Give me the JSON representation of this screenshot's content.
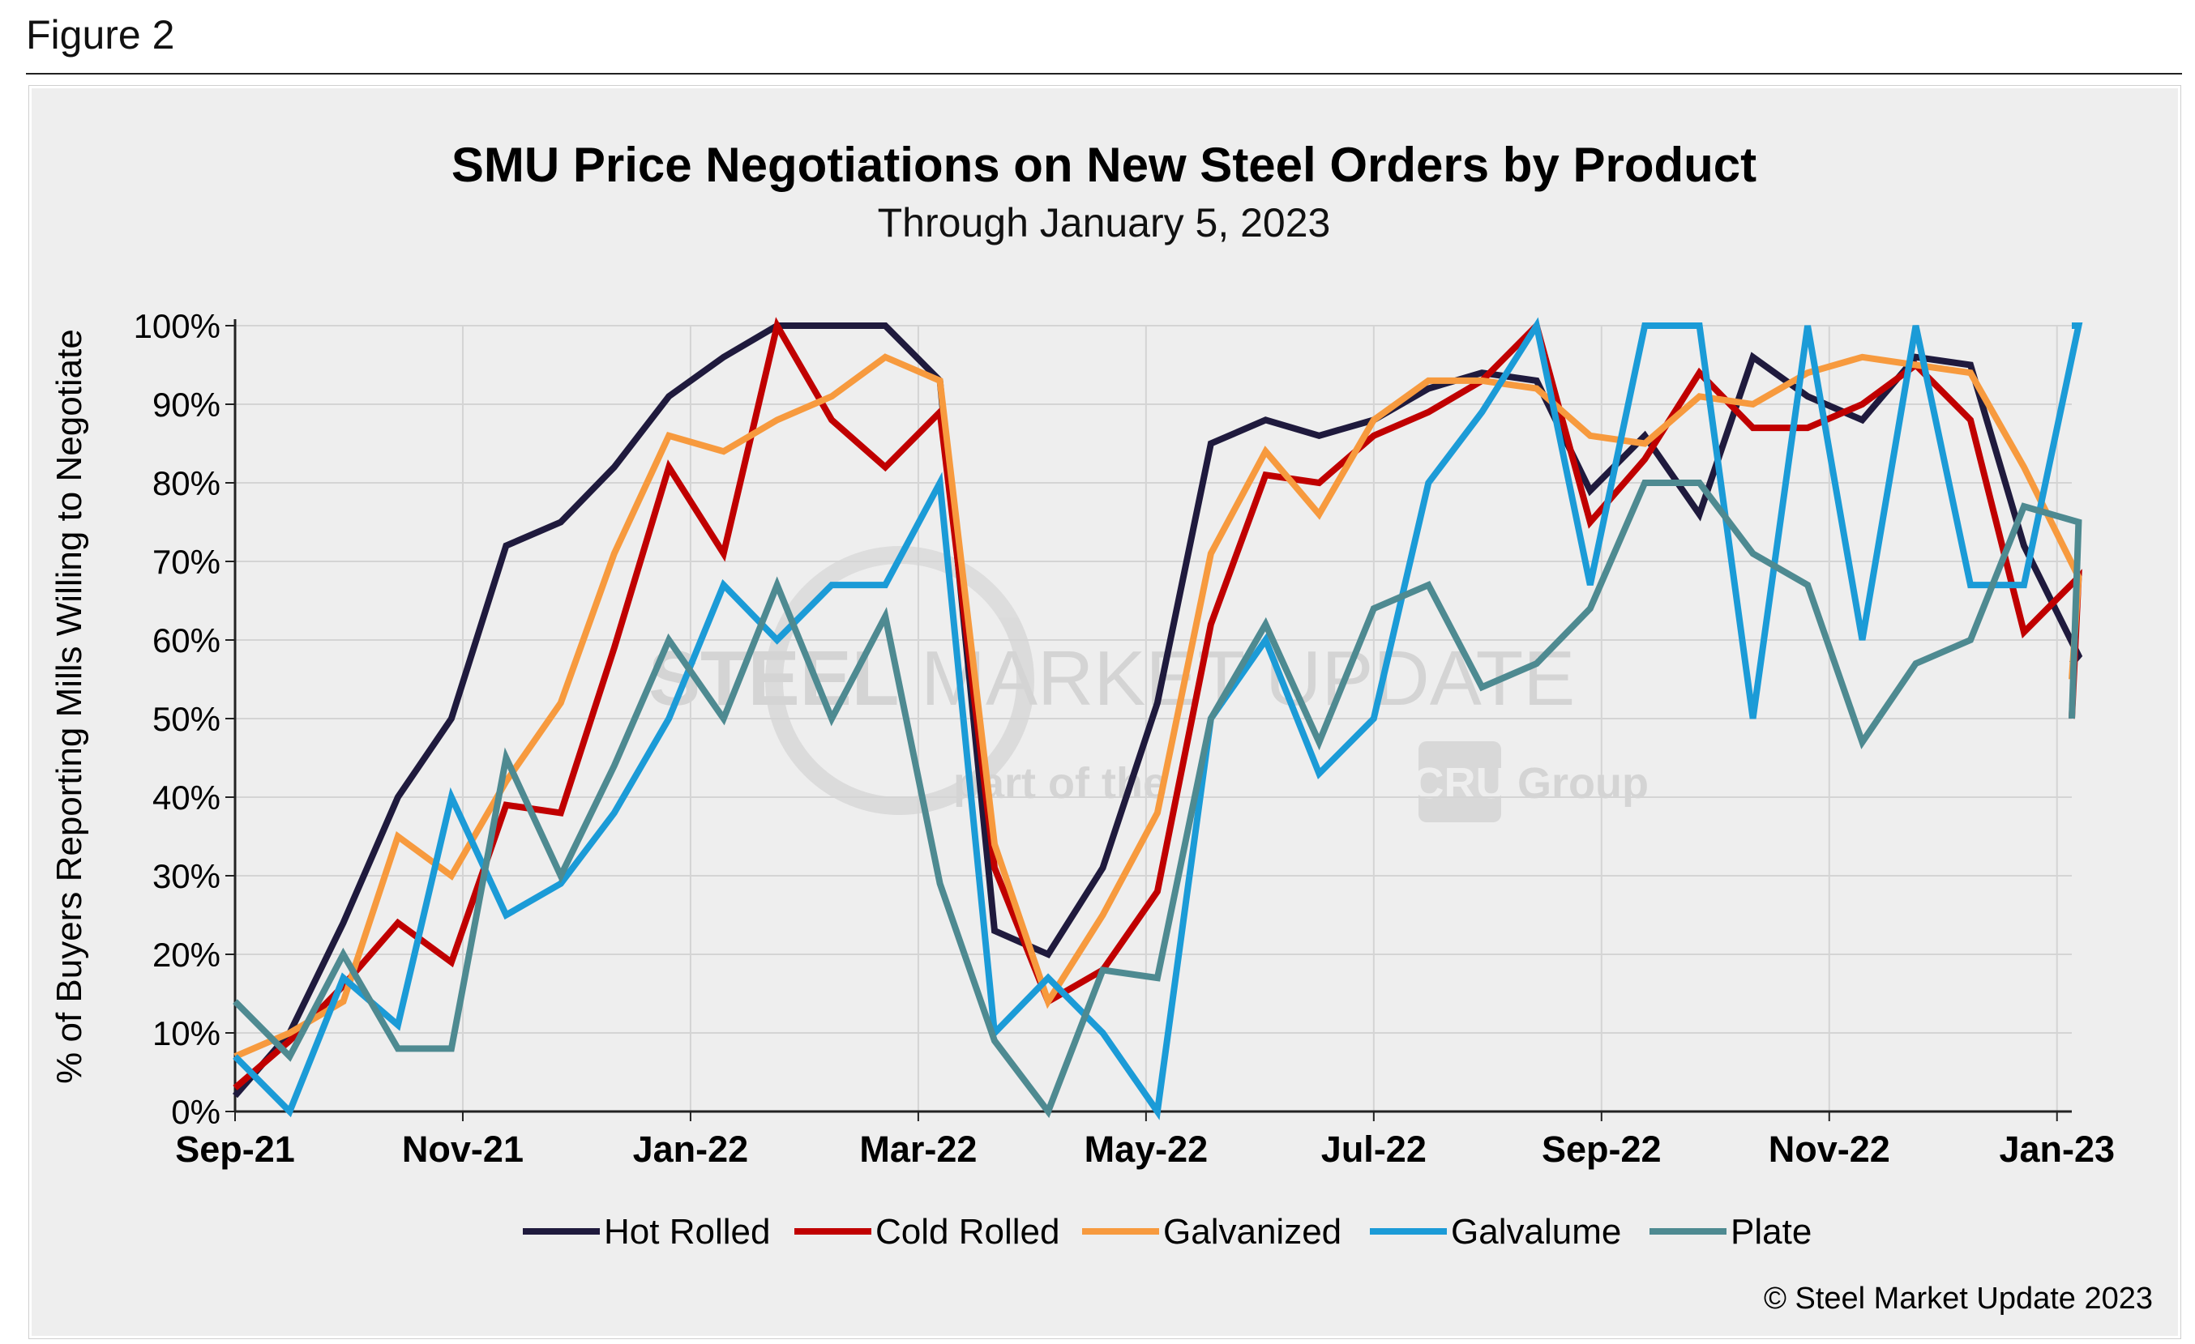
{
  "figure_label": "Figure 2",
  "copyright": "© Steel Market Update 2023",
  "watermark": {
    "line1_bold": "STEEL",
    "line1_regular": " MARKET UPDATE",
    "line2_pre": "part of the",
    "badge": "CRU",
    "line2_post": "Group"
  },
  "chart_data": {
    "type": "line",
    "title": "SMU Price Negotiations on New Steel Orders by Product",
    "subtitle": "Through January 5, 2023",
    "ylabel": "% of Buyers Reporting Mills Willing to Negotiate",
    "xlabel": "",
    "x_start": "2021-09-01",
    "x_end": "2023-01-05",
    "xlim_months": [
      0,
      16.13
    ],
    "x_ticks": [
      {
        "label": "Sep-21",
        "m": 0
      },
      {
        "label": "Nov-21",
        "m": 2
      },
      {
        "label": "Jan-22",
        "m": 4
      },
      {
        "label": "Mar-22",
        "m": 6
      },
      {
        "label": "May-22",
        "m": 8
      },
      {
        "label": "Jul-22",
        "m": 10
      },
      {
        "label": "Sep-22",
        "m": 12
      },
      {
        "label": "Nov-22",
        "m": 14
      },
      {
        "label": "Jan-23",
        "m": 16
      }
    ],
    "ylim": [
      0,
      100
    ],
    "y_ticks": [
      "0%",
      "10%",
      "20%",
      "30%",
      "40%",
      "50%",
      "60%",
      "70%",
      "80%",
      "90%",
      "100%"
    ],
    "grid": true,
    "legend_position": "bottom",
    "series": [
      {
        "name": "Hot Rolled",
        "color": "#1f1a3d",
        "points": [
          [
            0,
            2
          ],
          [
            0.48,
            10
          ],
          [
            0.95,
            24
          ],
          [
            1.43,
            40
          ],
          [
            1.9,
            50
          ],
          [
            2.38,
            72
          ],
          [
            2.86,
            75
          ],
          [
            3.33,
            82
          ],
          [
            3.81,
            91
          ],
          [
            4.29,
            96
          ],
          [
            4.76,
            100
          ],
          [
            5.24,
            100
          ],
          [
            5.71,
            100
          ],
          [
            6.19,
            93
          ],
          [
            6.67,
            23
          ],
          [
            7.14,
            20
          ],
          [
            7.62,
            31
          ],
          [
            8.1,
            52
          ],
          [
            8.57,
            85
          ],
          [
            9.05,
            88
          ],
          [
            9.52,
            86
          ],
          [
            10.0,
            88
          ],
          [
            10.48,
            92
          ],
          [
            10.95,
            94
          ],
          [
            11.43,
            93
          ],
          [
            11.9,
            79
          ],
          [
            12.38,
            86
          ],
          [
            12.86,
            76
          ],
          [
            13.33,
            96
          ],
          [
            13.81,
            91
          ],
          [
            14.29,
            88
          ],
          [
            14.76,
            96
          ],
          [
            15.24,
            95
          ],
          [
            15.71,
            72
          ],
          [
            16.19,
            58
          ],
          [
            16.13,
            57
          ]
        ]
      },
      {
        "name": "Cold Rolled",
        "color": "#c00000",
        "points": [
          [
            0,
            3
          ],
          [
            0.48,
            9
          ],
          [
            0.95,
            16
          ],
          [
            1.43,
            24
          ],
          [
            1.9,
            19
          ],
          [
            2.38,
            39
          ],
          [
            2.86,
            38
          ],
          [
            3.33,
            59
          ],
          [
            3.81,
            82
          ],
          [
            4.29,
            71
          ],
          [
            4.76,
            100
          ],
          [
            5.24,
            88
          ],
          [
            5.71,
            82
          ],
          [
            6.19,
            89
          ],
          [
            6.67,
            31
          ],
          [
            7.14,
            14
          ],
          [
            7.62,
            18
          ],
          [
            8.1,
            28
          ],
          [
            8.57,
            62
          ],
          [
            9.05,
            81
          ],
          [
            9.52,
            80
          ],
          [
            10.0,
            86
          ],
          [
            10.48,
            89
          ],
          [
            10.95,
            93
          ],
          [
            11.43,
            100
          ],
          [
            11.9,
            75
          ],
          [
            12.38,
            83
          ],
          [
            12.86,
            94
          ],
          [
            13.33,
            87
          ],
          [
            13.81,
            87
          ],
          [
            14.29,
            90
          ],
          [
            14.76,
            95
          ],
          [
            15.24,
            88
          ],
          [
            15.71,
            61
          ],
          [
            16.19,
            68
          ],
          [
            16.13,
            50
          ]
        ]
      },
      {
        "name": "Galvanized",
        "color": "#f79a3e",
        "points": [
          [
            0,
            7
          ],
          [
            0.48,
            10
          ],
          [
            0.95,
            14
          ],
          [
            1.43,
            35
          ],
          [
            1.9,
            30
          ],
          [
            2.38,
            42
          ],
          [
            2.86,
            52
          ],
          [
            3.33,
            71
          ],
          [
            3.81,
            86
          ],
          [
            4.29,
            84
          ],
          [
            4.76,
            88
          ],
          [
            5.24,
            91
          ],
          [
            5.71,
            96
          ],
          [
            6.19,
            93
          ],
          [
            6.67,
            34
          ],
          [
            7.14,
            14
          ],
          [
            7.62,
            25
          ],
          [
            8.1,
            38
          ],
          [
            8.57,
            71
          ],
          [
            9.05,
            84
          ],
          [
            9.52,
            76
          ],
          [
            10.0,
            88
          ],
          [
            10.48,
            93
          ],
          [
            10.95,
            93
          ],
          [
            11.43,
            92
          ],
          [
            11.9,
            86
          ],
          [
            12.38,
            85
          ],
          [
            12.86,
            91
          ],
          [
            13.33,
            90
          ],
          [
            13.81,
            94
          ],
          [
            14.29,
            96
          ],
          [
            14.76,
            95
          ],
          [
            15.24,
            94
          ],
          [
            15.71,
            82
          ],
          [
            16.19,
            68
          ],
          [
            16.13,
            55
          ]
        ]
      },
      {
        "name": "Galvalume",
        "color": "#1b9bd7",
        "points": [
          [
            0,
            7
          ],
          [
            0.48,
            0
          ],
          [
            0.95,
            17
          ],
          [
            1.43,
            11
          ],
          [
            1.9,
            40
          ],
          [
            2.38,
            25
          ],
          [
            2.86,
            29
          ],
          [
            3.33,
            38
          ],
          [
            3.81,
            50
          ],
          [
            4.29,
            67
          ],
          [
            4.76,
            60
          ],
          [
            5.24,
            67
          ],
          [
            5.71,
            67
          ],
          [
            6.19,
            80
          ],
          [
            6.67,
            10
          ],
          [
            7.14,
            17
          ],
          [
            7.62,
            10
          ],
          [
            8.1,
            0
          ],
          [
            8.57,
            50
          ],
          [
            9.05,
            60
          ],
          [
            9.52,
            43
          ],
          [
            10.0,
            50
          ],
          [
            10.48,
            80
          ],
          [
            10.95,
            89
          ],
          [
            11.43,
            100
          ],
          [
            11.9,
            67
          ],
          [
            12.38,
            100
          ],
          [
            12.86,
            100
          ],
          [
            13.33,
            50
          ],
          [
            13.81,
            100
          ],
          [
            14.29,
            60
          ],
          [
            14.76,
            100
          ],
          [
            15.24,
            67
          ],
          [
            15.71,
            67
          ],
          [
            16.19,
            100
          ],
          [
            16.13,
            100
          ]
        ]
      },
      {
        "name": "Plate",
        "color": "#4e8a91",
        "points": [
          [
            0,
            14
          ],
          [
            0.48,
            7
          ],
          [
            0.95,
            20
          ],
          [
            1.43,
            8
          ],
          [
            1.9,
            8
          ],
          [
            2.38,
            45
          ],
          [
            2.86,
            30
          ],
          [
            3.33,
            44
          ],
          [
            3.81,
            60
          ],
          [
            4.29,
            50
          ],
          [
            4.76,
            67
          ],
          [
            5.24,
            50
          ],
          [
            5.71,
            63
          ],
          [
            6.19,
            29
          ],
          [
            6.67,
            9
          ],
          [
            7.14,
            0
          ],
          [
            7.62,
            18
          ],
          [
            8.1,
            17
          ],
          [
            8.57,
            50
          ],
          [
            9.05,
            62
          ],
          [
            9.52,
            47
          ],
          [
            10.0,
            64
          ],
          [
            10.48,
            67
          ],
          [
            10.95,
            54
          ],
          [
            11.43,
            57
          ],
          [
            11.9,
            64
          ],
          [
            12.38,
            80
          ],
          [
            12.86,
            80
          ],
          [
            13.33,
            71
          ],
          [
            13.81,
            67
          ],
          [
            14.29,
            47
          ],
          [
            14.76,
            57
          ],
          [
            15.24,
            60
          ],
          [
            15.71,
            77
          ],
          [
            16.19,
            75
          ],
          [
            16.13,
            50
          ]
        ]
      }
    ]
  }
}
